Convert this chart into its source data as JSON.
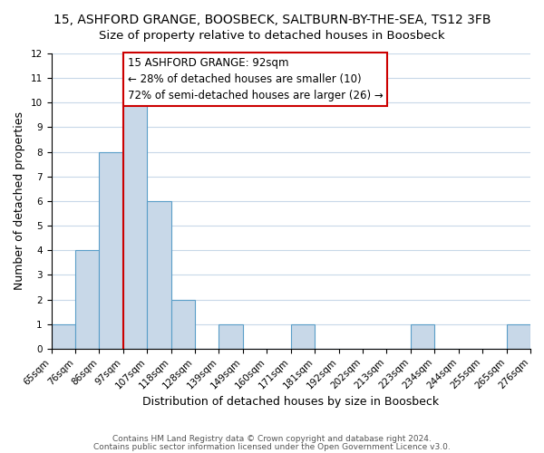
{
  "title": "15, ASHFORD GRANGE, BOOSBECK, SALTBURN-BY-THE-SEA, TS12 3FB",
  "subtitle": "Size of property relative to detached houses in Boosbeck",
  "xlabel": "Distribution of detached houses by size in Boosbeck",
  "ylabel": "Number of detached properties",
  "bin_labels": [
    "65sqm",
    "76sqm",
    "86sqm",
    "97sqm",
    "107sqm",
    "118sqm",
    "128sqm",
    "139sqm",
    "149sqm",
    "160sqm",
    "171sqm",
    "181sqm",
    "192sqm",
    "202sqm",
    "213sqm",
    "223sqm",
    "234sqm",
    "244sqm",
    "255sqm",
    "265sqm",
    "276sqm"
  ],
  "bar_values": [
    1,
    4,
    8,
    10,
    6,
    2,
    0,
    1,
    0,
    0,
    1,
    0,
    0,
    0,
    0,
    1,
    0,
    0,
    0,
    1
  ],
  "bar_color": "#c8d8e8",
  "bar_edge_color": "#5a9ec8",
  "grid_color": "#c8d8e8",
  "vline_color": "#cc0000",
  "annotation_line1": "15 ASHFORD GRANGE: 92sqm",
  "annotation_line2": "← 28% of detached houses are smaller (10)",
  "annotation_line3": "72% of semi-detached houses are larger (26) →",
  "annotation_box_color": "#ffffff",
  "annotation_box_edge_color": "#cc0000",
  "ylim": [
    0,
    12
  ],
  "yticks": [
    0,
    1,
    2,
    3,
    4,
    5,
    6,
    7,
    8,
    9,
    10,
    11,
    12
  ],
  "footer1": "Contains HM Land Registry data © Crown copyright and database right 2024.",
  "footer2": "Contains public sector information licensed under the Open Government Licence v3.0.",
  "title_fontsize": 10,
  "subtitle_fontsize": 9.5,
  "axis_label_fontsize": 9,
  "tick_fontsize": 7.5,
  "annotation_fontsize": 8.5
}
